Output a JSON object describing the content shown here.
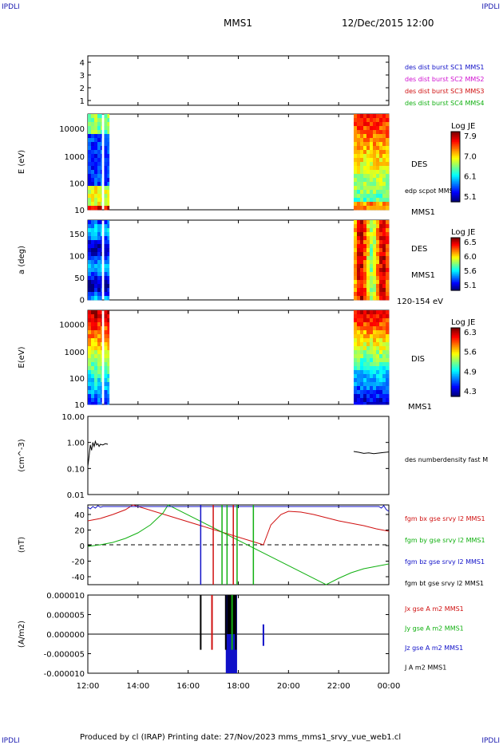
{
  "header": {
    "corner_left": "IPDLI",
    "corner_right": "IPDLI",
    "mission": "MMS1",
    "datetime": "12/Dec/2015 12:00"
  },
  "footer": {
    "text": "Produced by cl (IRAP)   Printing date: 27/Nov/2023   mms_mms1_srvy_vue_web1.cl",
    "corner_left": "IPDLI",
    "corner_right": "IPDLI"
  },
  "x_axis": {
    "tick_labels": [
      "12:00",
      "14:00",
      "16:00",
      "18:00",
      "20:00",
      "22:00",
      "00:00"
    ],
    "range_hours": [
      12,
      24
    ]
  },
  "panels": [
    {
      "id": "burst",
      "y_ticks": [
        "4",
        "3",
        "2",
        "1"
      ],
      "legend": [
        {
          "text": "des dist burst SC1 MMS1",
          "color": "#1010c8"
        },
        {
          "text": "des dist burst SC2 MMS2",
          "color": "#d010d0"
        },
        {
          "text": "des dist burst SC3 MMS3",
          "color": "#d01010"
        },
        {
          "text": "des dist burst SC4 MMS4",
          "color": "#10b010"
        }
      ]
    },
    {
      "id": "des-energy",
      "ylabel": "E (eV)",
      "y_ticks": [
        "10000",
        "1000",
        "100",
        "10"
      ],
      "labels": [
        "DES",
        "edp scpot MMS1",
        "MMS1"
      ],
      "colorbar": {
        "title": "Log JE",
        "ticks": [
          "7.9",
          "7.0",
          "6.1",
          "5.1"
        ]
      }
    },
    {
      "id": "des-pitch",
      "ylabel": "a (deg)",
      "y_ticks": [
        "150",
        "100",
        "50",
        "0"
      ],
      "labels": [
        "DES",
        "MMS1",
        "120-154 eV"
      ],
      "colorbar": {
        "title": "Log JE",
        "ticks": [
          "6.5",
          "6.0",
          "5.6",
          "5.1"
        ]
      }
    },
    {
      "id": "dis-energy",
      "ylabel": "E(eV)",
      "y_ticks": [
        "10000",
        "1000",
        "100",
        "10"
      ],
      "labels": [
        "DIS",
        "MMS1"
      ],
      "colorbar": {
        "title": "Log JE",
        "ticks": [
          "6.3",
          "5.6",
          "4.9",
          "4.3"
        ]
      }
    },
    {
      "id": "density",
      "ylabel": "(cm^-3)",
      "y_ticks": [
        "10.00",
        "1.00",
        "0.10",
        "0.01"
      ],
      "legend": [
        {
          "text": "des numberdensity fast M",
          "color": "#000000"
        }
      ]
    },
    {
      "id": "bfield",
      "ylabel": "(nT)",
      "y_ticks": [
        "40",
        "20",
        "0",
        "-20",
        "-40"
      ],
      "legend": [
        {
          "text": "fgm bx gse srvy l2 MMS1",
          "color": "#d01010"
        },
        {
          "text": "fgm by gse srvy l2 MMS1",
          "color": "#10b010"
        },
        {
          "text": "fgm bz gse srvy l2 MMS1",
          "color": "#1010c8"
        },
        {
          "text": "fgm bt gse srvy l2 MMS1",
          "color": "#000000"
        }
      ]
    },
    {
      "id": "current",
      "ylabel": "(A/m2)",
      "y_ticks": [
        "0.000010",
        "0.000005",
        "0.000000",
        "-0.000005",
        "-0.000010"
      ],
      "legend": [
        {
          "text": "Jx gse A m2 MMS1",
          "color": "#d01010"
        },
        {
          "text": "Jy gse A m2 MMS1",
          "color": "#10b010"
        },
        {
          "text": "Jz gse A m2 MMS1",
          "color": "#1010c8"
        },
        {
          "text": "J A m2 MMS1",
          "color": "#000000"
        }
      ]
    }
  ],
  "chart_data": [
    {
      "type": "heatmap",
      "title": "des dist burst availability",
      "ylim": [
        0.5,
        4.5
      ],
      "values": []
    },
    {
      "type": "heatmap",
      "ylabel": "E (eV)",
      "ylim": [
        10,
        30000
      ],
      "yscale": "log",
      "intervals_hours": [
        [
          12.0,
          12.55
        ],
        [
          12.65,
          12.85
        ],
        [
          22.6,
          24.0
        ]
      ],
      "colorbar_range": [
        5.1,
        7.9
      ]
    },
    {
      "type": "heatmap",
      "ylabel": "a (deg)",
      "ylim": [
        0,
        180
      ],
      "intervals_hours": [
        [
          12.0,
          12.55
        ],
        [
          12.65,
          12.85
        ],
        [
          22.6,
          24.0
        ]
      ],
      "colorbar_range": [
        5.1,
        6.5
      ]
    },
    {
      "type": "heatmap",
      "ylabel": "E(eV)",
      "ylim": [
        10,
        30000
      ],
      "yscale": "log",
      "intervals_hours": [
        [
          12.0,
          12.55
        ],
        [
          12.65,
          12.85
        ],
        [
          22.6,
          24.0
        ]
      ],
      "colorbar_range": [
        4.3,
        6.3
      ]
    },
    {
      "type": "line",
      "ylabel": "(cm^-3)",
      "yscale": "log",
      "ylim": [
        0.01,
        10
      ],
      "series": [
        {
          "name": "des numberdensity fast M",
          "color": "#000000",
          "x": [
            12.0,
            12.05,
            12.1,
            12.15,
            12.2,
            12.25,
            12.3,
            12.35,
            12.4,
            12.45,
            12.5,
            12.6,
            12.7,
            12.8
          ],
          "y": [
            0.12,
            0.3,
            0.8,
            0.5,
            1.0,
            0.7,
            1.1,
            0.8,
            0.9,
            0.7,
            0.85,
            0.8,
            0.9,
            0.85
          ]
        },
        {
          "name": "des numberdensity fast M",
          "color": "#000000",
          "x": [
            22.6,
            22.8,
            23.0,
            23.2,
            23.4,
            23.6,
            23.8,
            24.0
          ],
          "y": [
            0.45,
            0.42,
            0.38,
            0.4,
            0.37,
            0.39,
            0.41,
            0.43
          ]
        }
      ]
    },
    {
      "type": "line",
      "ylabel": "(nT)",
      "ylim": [
        -50,
        50
      ],
      "series": [
        {
          "name": "fgm bx gse srvy l2 MMS1",
          "color": "#d01010",
          "x": [
            12.0,
            12.5,
            13.0,
            13.5,
            13.8,
            19.0,
            19.3,
            19.7,
            20.0,
            20.5,
            21.0,
            21.5,
            22.0,
            22.5,
            23.0,
            23.5,
            24.0
          ],
          "y": [
            30,
            33,
            38,
            44,
            50,
            0,
            25,
            38,
            42,
            41,
            38,
            34,
            30,
            27,
            24,
            20,
            17
          ]
        },
        {
          "name": "fgm by gse srvy l2 MMS1",
          "color": "#10b010",
          "x": [
            12.0,
            12.5,
            13.0,
            13.5,
            14.0,
            14.5,
            15.0,
            15.2,
            21.5,
            22.0,
            22.5,
            23.0,
            23.5,
            24.0
          ],
          "y": [
            -2,
            0,
            3,
            8,
            15,
            25,
            40,
            50,
            -50,
            -42,
            -35,
            -30,
            -27,
            -24
          ]
        },
        {
          "name": "fgm bz gse srvy l2 MMS1",
          "color": "#1010c8",
          "x": [
            12.0,
            12.1,
            12.2,
            12.3,
            12.4,
            12.5,
            12.6,
            23.6,
            23.7,
            23.8,
            23.9,
            24.0
          ],
          "y": [
            47,
            45,
            48,
            46,
            49,
            47,
            48,
            48,
            46,
            49,
            44,
            42
          ]
        }
      ],
      "vertical_bursts_hours": [
        16.5,
        17.0,
        17.35,
        17.55,
        17.8,
        17.95,
        18.6
      ]
    },
    {
      "type": "line",
      "ylabel": "(A/m2)",
      "ylim": [
        -1e-05,
        1e-05
      ],
      "series": [
        {
          "name": "J A m2 MMS1",
          "color": "#000000",
          "x": [
            12.0,
            24.0
          ],
          "y": [
            0.0,
            0.0
          ]
        }
      ],
      "spike_hours": [
        16.5,
        16.95,
        17.5,
        17.75,
        17.9,
        19.0
      ]
    }
  ]
}
